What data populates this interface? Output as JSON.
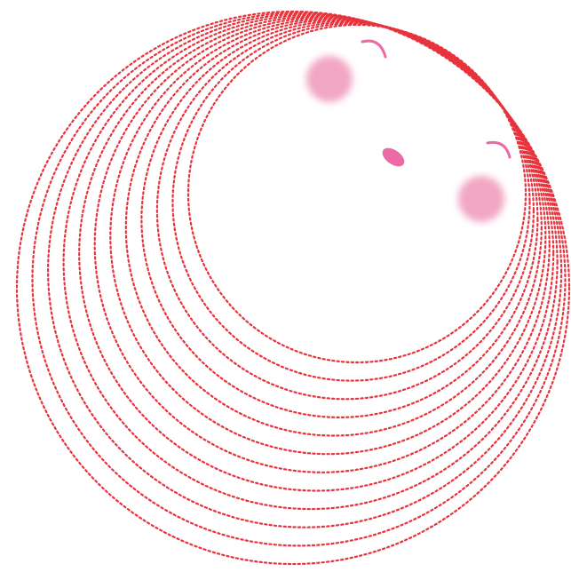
{
  "colors": {
    "background": "#ffffff",
    "ring_stroke": "#e8333c",
    "blush": "#f2a7c4",
    "feature": "#ec6aa6"
  },
  "illustration": {
    "ring_count": 12,
    "style": "dotted concentric circles"
  }
}
